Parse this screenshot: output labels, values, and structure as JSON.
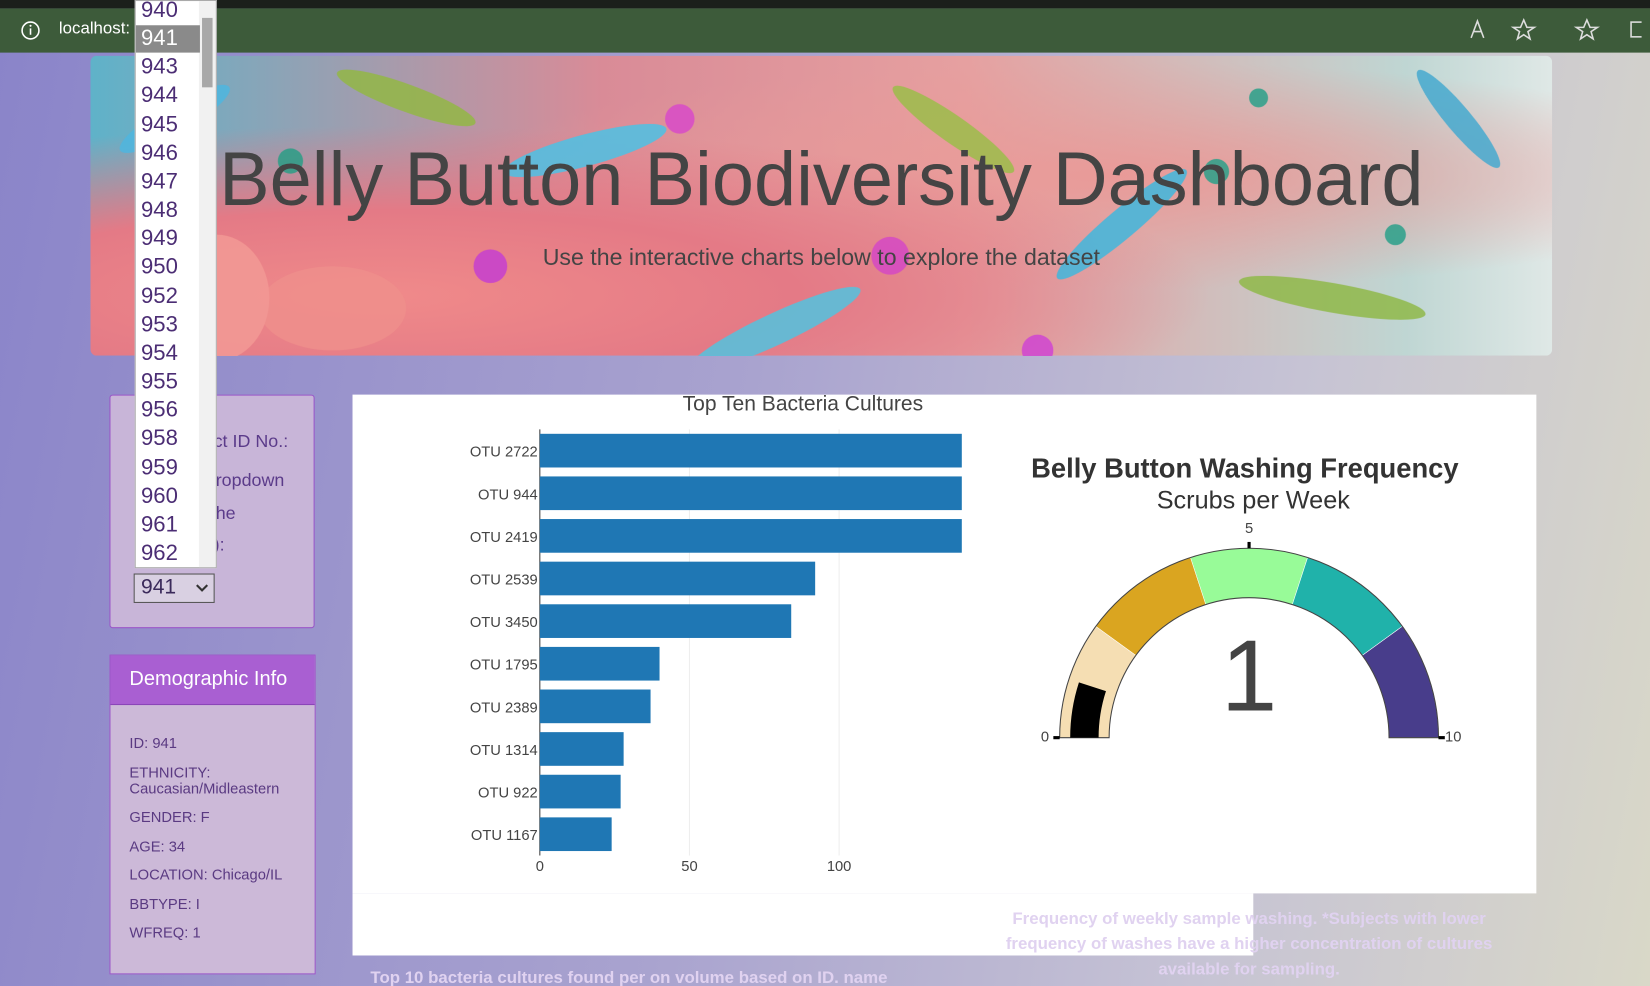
{
  "browser": {
    "address": "localhost:"
  },
  "header": {
    "title": "Belly Button Biodiversity Dashboard",
    "subtitle": "Use the interactive charts below to explore the dataset"
  },
  "selector": {
    "label_fragments": [
      "ct ID No.:",
      "ropdown",
      "he",
      "):"
    ],
    "options": [
      "940",
      "941",
      "943",
      "944",
      "945",
      "946",
      "947",
      "948",
      "949",
      "950",
      "952",
      "953",
      "954",
      "955",
      "956",
      "958",
      "959",
      "960",
      "961",
      "962"
    ],
    "selected": "941"
  },
  "demographic": {
    "heading": "Demographic Info",
    "items": [
      "ID: 941",
      "ETHNICITY: Caucasian/Midleastern",
      "GENDER: F",
      "AGE: 34",
      "LOCATION: Chicago/IL",
      "BBTYPE: I",
      "WFREQ: 1"
    ]
  },
  "chart_data": [
    {
      "type": "bar",
      "orientation": "horizontal",
      "title": "Top Ten Bacteria Cultures",
      "categories": [
        "OTU 2722",
        "OTU 944",
        "OTU 2419",
        "OTU 2539",
        "OTU 3450",
        "OTU 1795",
        "OTU 2389",
        "OTU 1314",
        "OTU 922",
        "OTU 1167"
      ],
      "values": [
        141,
        141,
        141,
        92,
        84,
        40,
        37,
        28,
        27,
        24
      ],
      "color": "#1f77b4",
      "xlim": [
        0,
        141
      ],
      "xticks": [
        0,
        50,
        100
      ],
      "grid": true
    },
    {
      "type": "gauge",
      "title": "Belly Button Washing Frequency",
      "subtitle": "Scrubs per Week",
      "value": 1,
      "range": [
        0,
        10
      ],
      "ticks": [
        0,
        5,
        10
      ],
      "bar_color": "black",
      "steps": [
        {
          "range": [
            0,
            2
          ],
          "color": "wheat"
        },
        {
          "range": [
            2,
            4
          ],
          "color": "goldenrod"
        },
        {
          "range": [
            4,
            6
          ],
          "color": "palegreen"
        },
        {
          "range": [
            6,
            8
          ],
          "color": "lightseagreen"
        },
        {
          "range": [
            8,
            10
          ],
          "color": "darkslateblue"
        }
      ]
    }
  ],
  "captions": {
    "bar": "Top 10 bacteria cultures found per on volume based on ID. name",
    "gauge": "Frequency of weekly sample washing. *Subjects with lower frequency of washes have a higher concentration of cultures available for sampling."
  }
}
